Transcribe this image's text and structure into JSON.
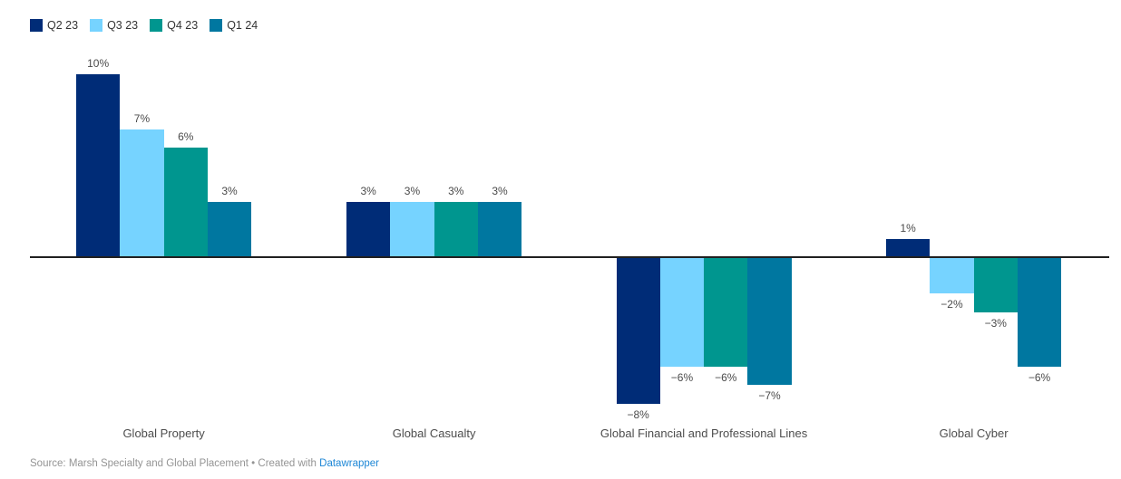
{
  "chart_data": {
    "type": "bar",
    "title": "",
    "xlabel": "",
    "ylabel": "",
    "value_suffix": "%",
    "ylim": [
      -8,
      10
    ],
    "grid": false,
    "legend_position": "top-left",
    "categories": [
      "Global Property",
      "Global Casualty",
      "Global Financial and Professional Lines",
      "Global Cyber"
    ],
    "series": [
      {
        "name": "Q2 23",
        "color": "#002c77",
        "values": [
          10,
          3,
          -8,
          1
        ],
        "labels": [
          "10%",
          "3%",
          "−8%",
          "1%"
        ]
      },
      {
        "name": "Q3 23",
        "color": "#76d3ff",
        "values": [
          7,
          3,
          -6,
          -2
        ],
        "labels": [
          "7%",
          "3%",
          "−6%",
          "−2%"
        ]
      },
      {
        "name": "Q4 23",
        "color": "#00968f",
        "values": [
          6,
          3,
          -6,
          -3
        ],
        "labels": [
          "6%",
          "3%",
          "−6%",
          "−3%"
        ]
      },
      {
        "name": "Q1 24",
        "color": "#0077a0",
        "values": [
          3,
          3,
          -7,
          -6
        ],
        "labels": [
          "3%",
          "3%",
          "−7%",
          "−6%"
        ]
      }
    ]
  },
  "colors": {
    "axis_line": "#202020",
    "value_label": "#4a4a4a",
    "category_label": "#4d4d4d",
    "legend_label": "#333333",
    "footer_text": "#949494",
    "link": "#1e87d6"
  },
  "footer": {
    "source_text": "Source: Marsh Specialty and Global Placement • Created with ",
    "link_label": "Datawrapper"
  }
}
